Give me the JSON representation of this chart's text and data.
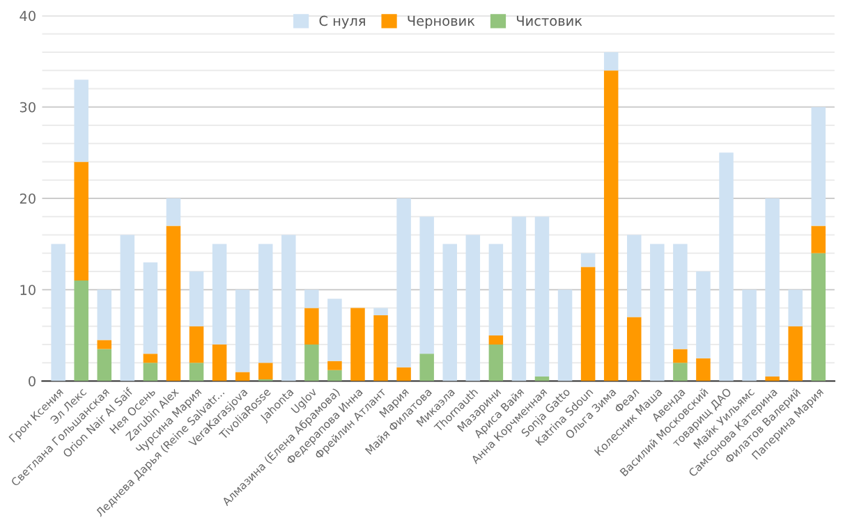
{
  "chart_data": {
    "type": "bar",
    "stacked": true,
    "categories": [
      "Грон Ксения",
      "Эл Лекс",
      "Светлана Гольшанская",
      "Orion Nair Al Saif",
      "Нея Осень",
      "Zarubin Alex",
      "Чурсина Мария",
      "Леднева Дарья (Reine Salvatr...",
      "VeraKarasjova",
      "TivoliaRosse",
      "Jahonta",
      "Uglov",
      "Алмазина (Елена Абрамова)",
      "Федерапова Инна",
      "Фрейлин Атлант",
      "Мария",
      "Майя Филатова",
      "Микаэла",
      "Thornauth",
      "Мазарини",
      "Ариса Вайя",
      "Анна Корчменная",
      "Sonja Gatto",
      "Katrina Sdoun",
      "Ольга Зима",
      "Феал",
      "Колесник Маша",
      "Авенда",
      "Василий Московский",
      "товарищ ДАО",
      "Майк Уильямс",
      "Самсонова Катерина",
      "Филатов Валерий",
      "Паперина Мария"
    ],
    "series": [
      {
        "name": "Чистовик",
        "color": "#93c47d",
        "values": [
          0,
          11,
          3.5,
          0,
          2,
          0,
          2,
          0,
          0,
          0.2,
          0,
          4,
          1.2,
          0,
          0,
          0,
          3,
          0,
          0,
          4,
          0,
          0.5,
          0,
          0,
          0,
          0,
          0,
          2,
          0,
          0,
          0,
          0,
          0,
          14
        ]
      },
      {
        "name": "Черновик",
        "color": "#ff9900",
        "values": [
          0,
          13,
          1,
          0,
          1,
          17,
          4,
          4,
          1,
          1.8,
          0,
          4,
          1,
          8,
          7.2,
          1.5,
          0,
          0,
          0,
          1,
          0,
          0,
          0,
          12.5,
          34,
          7,
          0,
          1.5,
          2.5,
          0,
          0,
          0.5,
          6,
          3
        ]
      },
      {
        "name": "С нуля",
        "color": "#cfe2f3",
        "values": [
          15,
          9,
          5.5,
          16,
          10,
          3,
          6,
          11,
          9,
          13,
          16,
          2,
          6.8,
          0,
          0.8,
          18.5,
          15,
          15,
          16,
          10,
          18,
          17.5,
          10,
          1.5,
          2,
          9,
          15,
          11.5,
          9.5,
          25,
          10,
          19.5,
          4,
          13
        ]
      }
    ],
    "ylim": [
      0,
      40
    ],
    "yticks": [
      0,
      {
        "value": 2,
        "label": null
      },
      {
        "value": 4,
        "label": null
      },
      {
        "value": 6,
        "label": null
      },
      {
        "value": 8,
        "label": null
      },
      10,
      {
        "value": 12,
        "label": null
      },
      {
        "value": 14,
        "label": null
      },
      {
        "value": 16,
        "label": null
      },
      {
        "value": 18,
        "label": null
      },
      20,
      {
        "value": 22,
        "label": null
      },
      {
        "value": 24,
        "label": null
      },
      {
        "value": 26,
        "label": null
      },
      {
        "value": 28,
        "label": null
      },
      30,
      {
        "value": 32,
        "label": null
      },
      {
        "value": 34,
        "label": null
      },
      {
        "value": 36,
        "label": null
      },
      {
        "value": 38,
        "label": null
      },
      40
    ],
    "grid": "y",
    "legend": "top"
  }
}
